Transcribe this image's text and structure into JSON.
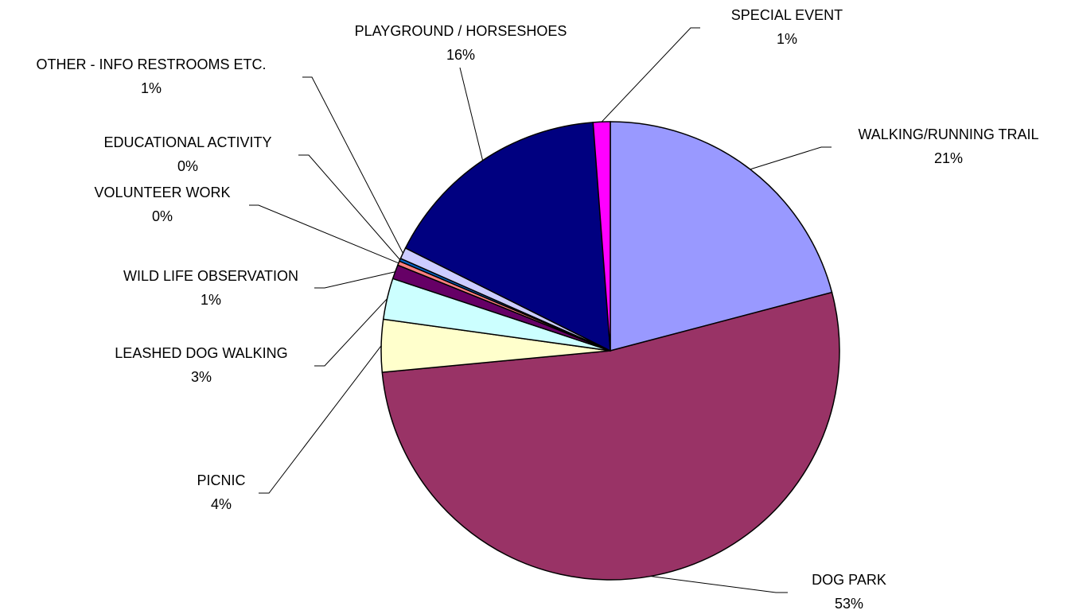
{
  "chart_data": {
    "type": "pie",
    "categories": [
      "WALKING/RUNNING TRAIL",
      "DOG PARK",
      "PICNIC",
      "LEASHED DOG WALKING",
      "WILD LIFE OBSERVATION",
      "VOLUNTEER WORK",
      "EDUCATIONAL ACTIVITY",
      "OTHER - INFO RESTROOMS ETC.",
      "PLAYGROUND / HORSESHOES",
      "SPECIAL EVENT"
    ],
    "values": [
      20.9,
      52.6,
      3.7,
      2.9,
      1.0,
      0.3,
      0.2,
      0.8,
      16.4,
      1.2
    ],
    "value_labels": [
      "21%",
      "53%",
      "4%",
      "3%",
      "1%",
      "0%",
      "0%",
      "1%",
      "16%",
      "1%"
    ],
    "colors": [
      "#9999ff",
      "#993366",
      "#ffffcc",
      "#ccffff",
      "#660066",
      "#ff8080",
      "#0066cc",
      "#ccccff",
      "#000080",
      "#ff00ff"
    ]
  }
}
